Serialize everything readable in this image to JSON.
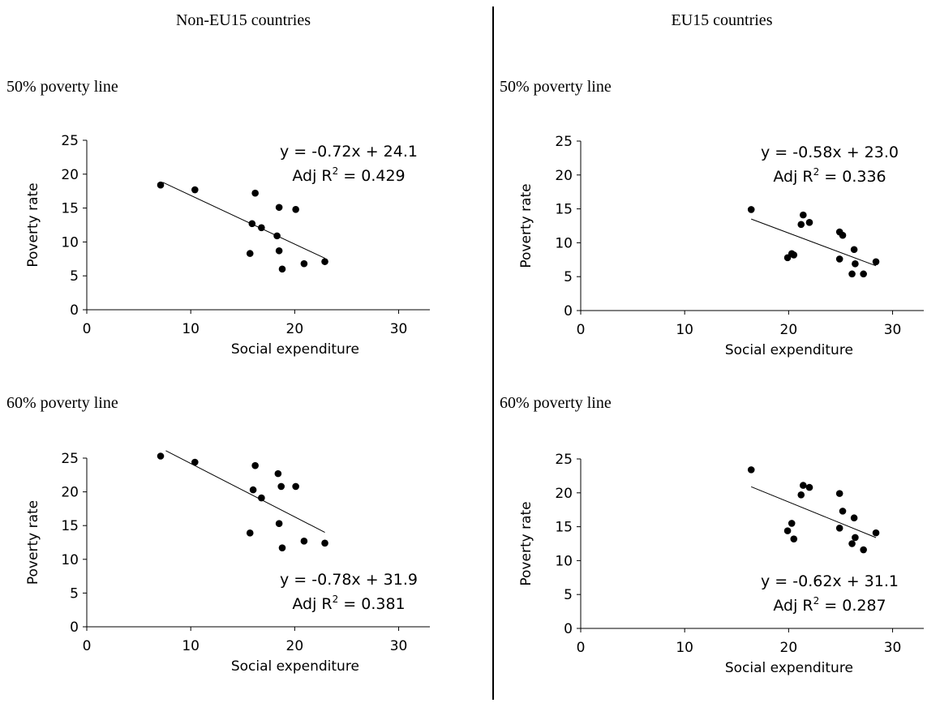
{
  "columns": {
    "left_title": "Non-EU15 countries",
    "right_title": "EU15 countries"
  },
  "chart_data": [
    {
      "type": "scatter",
      "group": "Non-EU15 countries",
      "panel_title": "50% poverty line",
      "xlabel": "Social expenditure",
      "ylabel": "Poverty rate",
      "xlim": [
        0,
        33
      ],
      "ylim": [
        0,
        25
      ],
      "xticks": [
        0,
        10,
        20,
        30
      ],
      "yticks": [
        0,
        5,
        10,
        15,
        20,
        25
      ],
      "points": [
        [
          7.1,
          18.4
        ],
        [
          10.4,
          17.7
        ],
        [
          16.2,
          17.2
        ],
        [
          15.9,
          12.7
        ],
        [
          16.8,
          12.1
        ],
        [
          15.7,
          8.3
        ],
        [
          18.5,
          15.1
        ],
        [
          20.1,
          14.8
        ],
        [
          18.3,
          10.9
        ],
        [
          18.5,
          8.7
        ],
        [
          18.8,
          6.0
        ],
        [
          20.9,
          6.8
        ],
        [
          22.9,
          7.1
        ]
      ],
      "trendline": {
        "x": [
          7.3,
          22.9
        ],
        "y": [
          18.8,
          7.6
        ]
      },
      "equation": {
        "line1": "y = -0.72x + 24.1",
        "r2_prefix": "Adj R",
        "r2_sup": "2",
        "r2_value": " = 0.429"
      },
      "equation_position": "top-right"
    },
    {
      "type": "scatter",
      "group": "EU15 countries",
      "panel_title": "50% poverty line",
      "xlabel": "Social expenditure",
      "ylabel": "Poverty rate",
      "xlim": [
        0,
        33
      ],
      "ylim": [
        0,
        25
      ],
      "xticks": [
        0,
        10,
        20,
        30
      ],
      "yticks": [
        0,
        5,
        10,
        15,
        20,
        25
      ],
      "points": [
        [
          16.4,
          14.9
        ],
        [
          21.4,
          14.1
        ],
        [
          21.2,
          12.7
        ],
        [
          22.0,
          13.0
        ],
        [
          20.3,
          8.4
        ],
        [
          19.9,
          7.8
        ],
        [
          20.5,
          8.2
        ],
        [
          24.9,
          11.6
        ],
        [
          25.2,
          11.1
        ],
        [
          24.9,
          7.6
        ],
        [
          26.3,
          9.0
        ],
        [
          26.4,
          6.9
        ],
        [
          26.1,
          5.4
        ],
        [
          27.2,
          5.4
        ],
        [
          28.4,
          7.2
        ]
      ],
      "trendline": {
        "x": [
          16.4,
          28.4
        ],
        "y": [
          13.5,
          6.6
        ]
      },
      "equation": {
        "line1": "y = -0.58x + 23.0",
        "r2_prefix": "Adj R",
        "r2_sup": "2",
        "r2_value": " = 0.336"
      },
      "equation_position": "top-right"
    },
    {
      "type": "scatter",
      "group": "Non-EU15 countries",
      "panel_title": "60% poverty line",
      "xlabel": "Social expenditure",
      "ylabel": "Poverty rate",
      "xlim": [
        0,
        33
      ],
      "ylim": [
        0,
        25
      ],
      "xticks": [
        0,
        10,
        20,
        30
      ],
      "yticks": [
        0,
        5,
        10,
        15,
        20,
        25
      ],
      "points": [
        [
          7.1,
          25.3
        ],
        [
          10.4,
          24.4
        ],
        [
          16.2,
          23.9
        ],
        [
          16.0,
          20.3
        ],
        [
          16.8,
          19.1
        ],
        [
          15.7,
          13.9
        ],
        [
          18.4,
          22.7
        ],
        [
          18.7,
          20.8
        ],
        [
          20.1,
          20.8
        ],
        [
          18.5,
          15.3
        ],
        [
          18.8,
          11.7
        ],
        [
          20.9,
          12.7
        ],
        [
          22.9,
          12.4
        ]
      ],
      "trendline": {
        "x": [
          7.6,
          22.9
        ],
        "y": [
          26.1,
          14.0
        ]
      },
      "equation": {
        "line1": "y = -0.78x + 31.9",
        "r2_prefix": "Adj R",
        "r2_sup": "2",
        "r2_value": " = 0.381"
      },
      "equation_position": "bottom-right"
    },
    {
      "type": "scatter",
      "group": "EU15 countries",
      "panel_title": "60% poverty line",
      "xlabel": "Social expenditure",
      "ylabel": "Poverty rate",
      "xlim": [
        0,
        33
      ],
      "ylim": [
        0,
        25
      ],
      "xticks": [
        0,
        10,
        20,
        30
      ],
      "yticks": [
        0,
        5,
        10,
        15,
        20,
        25
      ],
      "points": [
        [
          16.4,
          23.4
        ],
        [
          21.4,
          21.1
        ],
        [
          21.2,
          19.7
        ],
        [
          22.0,
          20.8
        ],
        [
          24.9,
          19.9
        ],
        [
          25.2,
          17.3
        ],
        [
          26.3,
          16.3
        ],
        [
          20.3,
          15.5
        ],
        [
          19.9,
          14.4
        ],
        [
          20.5,
          13.2
        ],
        [
          24.9,
          14.8
        ],
        [
          26.4,
          13.4
        ],
        [
          26.1,
          12.5
        ],
        [
          27.2,
          11.6
        ],
        [
          28.4,
          14.1
        ]
      ],
      "trendline": {
        "x": [
          16.4,
          28.4
        ],
        "y": [
          20.9,
          13.4
        ]
      },
      "equation": {
        "line1": "y = -0.62x + 31.1",
        "r2_prefix": "Adj R",
        "r2_sup": "2",
        "r2_value": " = 0.287"
      },
      "equation_position": "bottom-right"
    }
  ]
}
